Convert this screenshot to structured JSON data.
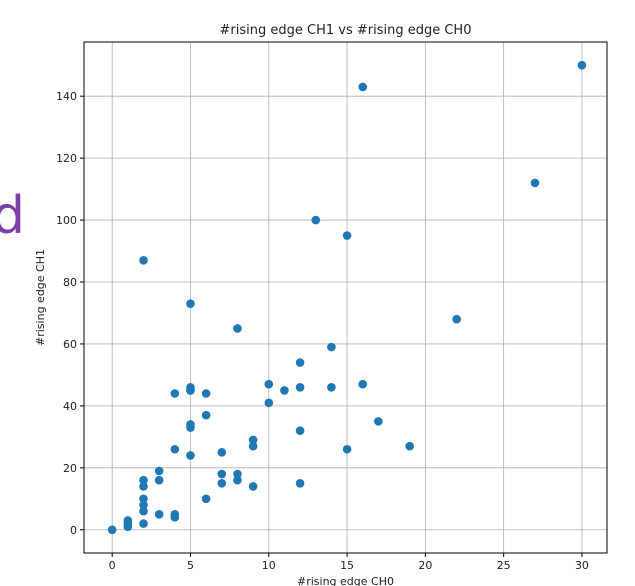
{
  "fragment_text": "d",
  "colors": {
    "point": "#1f77b4",
    "grid": "#b0b0b0",
    "axis": "#000000",
    "fragment": "#7b3fa8"
  },
  "chart_data": {
    "type": "scatter",
    "title": "#rising edge CH1 vs #rising edge CH0",
    "xlabel": "#rising edge CH0",
    "ylabel": "#rising edge CH1",
    "xlim": [
      -1.8,
      31.6
    ],
    "ylim": [
      -7.5,
      157.5
    ],
    "xticks": [
      0,
      5,
      10,
      15,
      20,
      25,
      30
    ],
    "yticks": [
      0,
      20,
      40,
      60,
      80,
      100,
      120,
      140
    ],
    "grid": true,
    "x": [
      0,
      1,
      1,
      1,
      2,
      2,
      2,
      2,
      2,
      2,
      2,
      3,
      3,
      3,
      4,
      4,
      4,
      4,
      5,
      5,
      5,
      5,
      5,
      5,
      5,
      6,
      6,
      6,
      7,
      7,
      7,
      8,
      8,
      8,
      9,
      9,
      9,
      10,
      10,
      11,
      12,
      12,
      12,
      12,
      13,
      14,
      14,
      15,
      15,
      16,
      16,
      17,
      19,
      22,
      27,
      30
    ],
    "y": [
      0,
      1,
      2,
      3,
      2,
      6,
      8,
      10,
      14,
      16,
      87,
      5,
      16,
      19,
      4,
      5,
      26,
      44,
      24,
      33,
      34,
      45,
      46,
      73,
      45,
      10,
      37,
      44,
      15,
      18,
      25,
      16,
      18,
      65,
      14,
      27,
      29,
      41,
      47,
      45,
      15,
      32,
      46,
      54,
      100,
      46,
      59,
      26,
      95,
      47,
      143,
      35,
      27,
      68,
      112,
      150
    ]
  }
}
